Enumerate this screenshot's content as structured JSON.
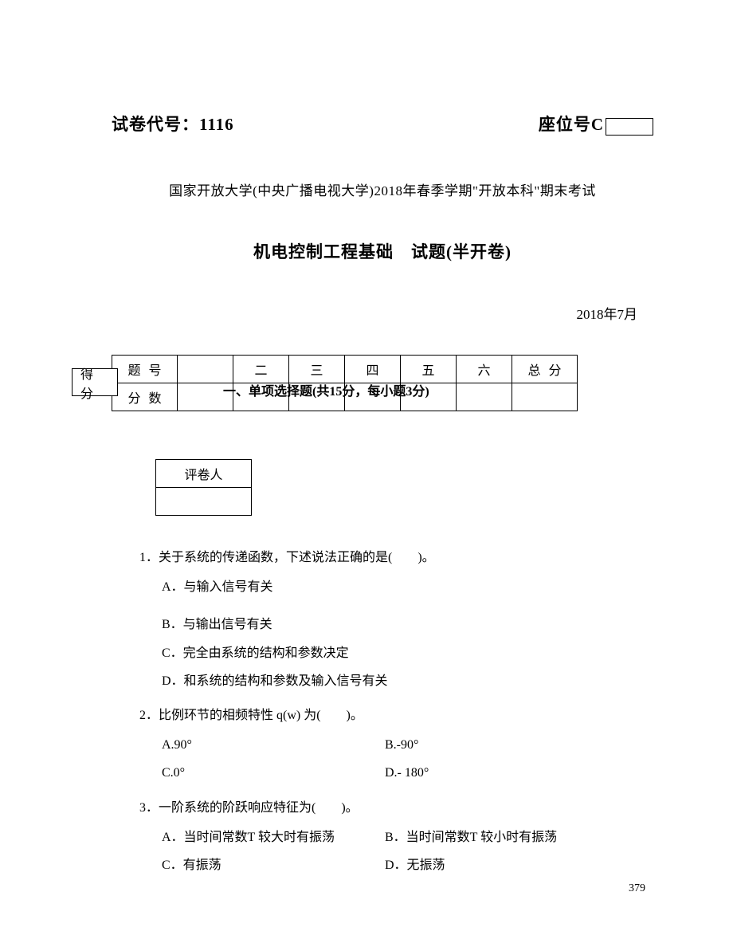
{
  "header": {
    "exam_code_label": "试卷代号：",
    "exam_code": "1116",
    "seat_label": "座位号C"
  },
  "university_line": "国家开放大学(中央广播电视大学)2018年春季学期\"开放本科\"期末考试",
  "title": "机电控制工程基础　试题(半开卷)",
  "date": "2018年7月",
  "score_table": {
    "row1_header": "题号",
    "row2_header": "分数",
    "defen": "得分",
    "columns": [
      "",
      "二",
      "三",
      "四",
      "五",
      "六"
    ],
    "total": "总分",
    "section_overlay": "一、单项选择题(共15分，每小题3分)"
  },
  "reviewer": {
    "label": "评卷人"
  },
  "questions": [
    {
      "num": "1．",
      "text": "关于系统的传递函数，下述说法正确的是(　　)。",
      "options_layout": "vertical",
      "options": [
        "A．与输入信号有关",
        "B．与输出信号有关",
        "C．完全由系统的结构和参数决定",
        "D．和系统的结构和参数及输入信号有关"
      ]
    },
    {
      "num": "2．",
      "text": "比例环节的相频特性 q(w) 为(　　)。",
      "options_layout": "two-col",
      "options_pairs": [
        [
          "A.90°",
          "B.-90°"
        ],
        [
          "C.0°",
          "D.- 180°"
        ]
      ]
    },
    {
      "num": "3．",
      "text": "一阶系统的阶跃响应特征为(　　)。",
      "options_layout": "two-col",
      "options_pairs": [
        [
          "A．当时间常数T 较大时有振荡",
          "B．当时间常数T 较小时有振荡"
        ],
        [
          "C．有振荡",
          "D．无振荡"
        ]
      ]
    }
  ],
  "page_number": "379"
}
